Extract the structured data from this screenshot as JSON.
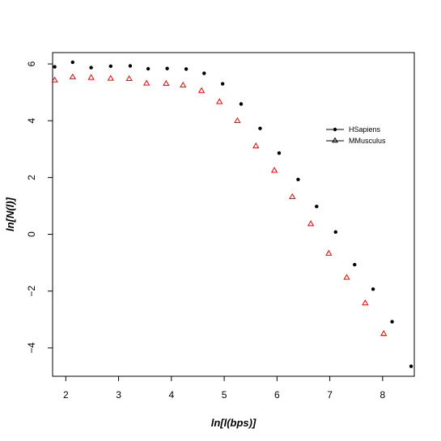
{
  "chart_data": {
    "type": "scatter",
    "title": "",
    "xlabel": "ln[l(bps)]",
    "ylabel": "ln[N(l)]",
    "xlim": [
      1.75,
      8.6
    ],
    "ylim": [
      -5.0,
      6.4
    ],
    "xticks": [
      2,
      3,
      4,
      5,
      6,
      7,
      8
    ],
    "yticks": [
      6,
      4,
      2,
      0,
      -2,
      -4
    ],
    "grid": false,
    "legend_position": "top-right",
    "series": [
      {
        "name": "HSapiens",
        "marker": "dot",
        "color": "#000000",
        "x": [
          1.79,
          2.13,
          2.48,
          2.85,
          3.22,
          3.56,
          3.92,
          4.28,
          4.62,
          4.97,
          5.32,
          5.68,
          6.04,
          6.4,
          6.75,
          7.11,
          7.47,
          7.82,
          8.18,
          8.54
        ],
        "y": [
          5.9,
          6.06,
          5.87,
          5.92,
          5.93,
          5.83,
          5.84,
          5.82,
          5.67,
          5.3,
          4.59,
          3.73,
          2.86,
          1.93,
          0.98,
          0.08,
          -1.07,
          -1.93,
          -3.08,
          -4.65
        ]
      },
      {
        "name": "MMusculus",
        "marker": "triangle",
        "color": "#ff0000",
        "x": [
          1.79,
          2.13,
          2.48,
          2.85,
          3.2,
          3.53,
          3.9,
          4.22,
          4.57,
          4.91,
          5.25,
          5.6,
          5.95,
          6.29,
          6.64,
          6.98,
          7.32,
          7.67,
          8.02
        ],
        "y": [
          5.42,
          5.53,
          5.51,
          5.48,
          5.47,
          5.31,
          5.3,
          5.24,
          5.05,
          4.66,
          3.99,
          3.1,
          2.24,
          1.31,
          0.36,
          -0.68,
          -1.53,
          -2.43,
          -3.51
        ]
      }
    ]
  }
}
